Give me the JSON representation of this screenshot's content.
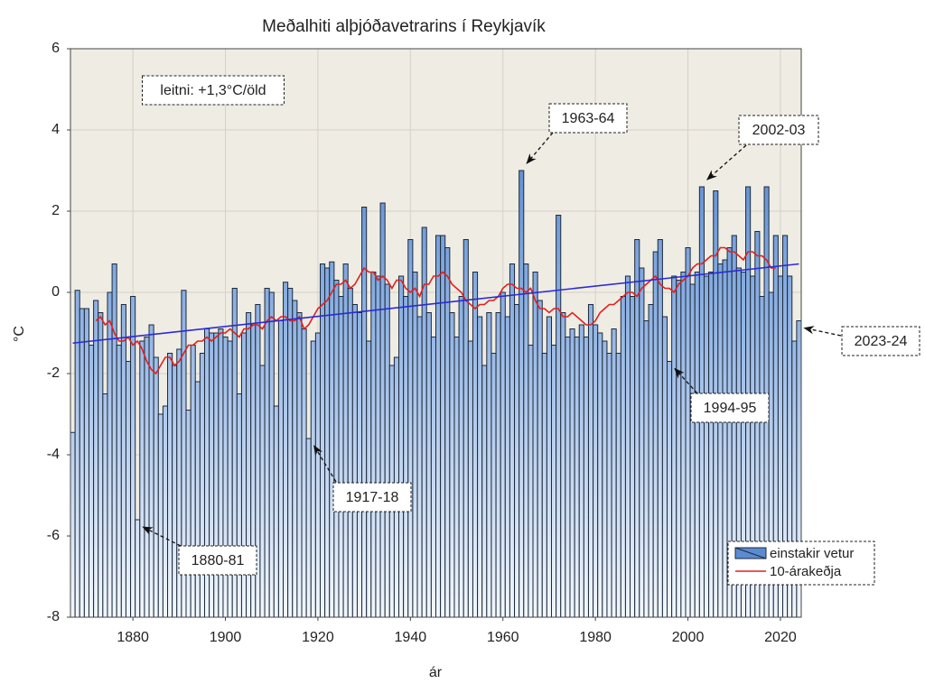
{
  "chart_data": {
    "type": "bar",
    "title": "Meðalhiti alþjóðavetrarins í Reykjavík",
    "x_label": "ár",
    "y_label": "°C",
    "x": [
      1867,
      1868,
      1869,
      1870,
      1871,
      1872,
      1873,
      1874,
      1875,
      1876,
      1877,
      1878,
      1879,
      1880,
      1881,
      1882,
      1883,
      1884,
      1885,
      1886,
      1887,
      1888,
      1889,
      1890,
      1891,
      1892,
      1893,
      1894,
      1895,
      1896,
      1897,
      1898,
      1899,
      1900,
      1901,
      1902,
      1903,
      1904,
      1905,
      1906,
      1907,
      1908,
      1909,
      1910,
      1911,
      1912,
      1913,
      1914,
      1915,
      1916,
      1917,
      1918,
      1919,
      1920,
      1921,
      1922,
      1923,
      1924,
      1925,
      1926,
      1927,
      1928,
      1929,
      1930,
      1931,
      1932,
      1933,
      1934,
      1935,
      1936,
      1937,
      1938,
      1939,
      1940,
      1941,
      1942,
      1943,
      1944,
      1945,
      1946,
      1947,
      1948,
      1949,
      1950,
      1951,
      1952,
      1953,
      1954,
      1955,
      1956,
      1957,
      1958,
      1959,
      1960,
      1961,
      1962,
      1963,
      1964,
      1965,
      1966,
      1967,
      1968,
      1969,
      1970,
      1971,
      1972,
      1973,
      1974,
      1975,
      1976,
      1977,
      1978,
      1979,
      1980,
      1981,
      1982,
      1983,
      1984,
      1985,
      1986,
      1987,
      1988,
      1989,
      1990,
      1991,
      1992,
      1993,
      1994,
      1995,
      1996,
      1997,
      1998,
      1999,
      2000,
      2001,
      2002,
      2003,
      2004,
      2005,
      2006,
      2007,
      2008,
      2009,
      2010,
      2011,
      2012,
      2013,
      2014,
      2015,
      2016,
      2017,
      2018,
      2019,
      2020,
      2021,
      2022,
      2023,
      2024
    ],
    "series": [
      {
        "name": "einstakir vetur",
        "color": "#5b8bd0",
        "type": "bar",
        "values": [
          -3.45,
          0.05,
          -0.4,
          -0.4,
          -1.3,
          -0.2,
          -0.5,
          -2.5,
          0.0,
          0.7,
          -1.3,
          -0.3,
          -1.7,
          -0.1,
          -5.6,
          -1.2,
          -1.1,
          -0.8,
          -1.6,
          -3.0,
          -2.8,
          -1.5,
          -1.8,
          -1.4,
          0.05,
          -2.9,
          -1.3,
          -2.2,
          -1.5,
          -0.9,
          -1.0,
          -1.0,
          -0.9,
          -1.1,
          -1.2,
          0.1,
          -2.5,
          -1.0,
          -0.5,
          -0.8,
          -0.3,
          -1.8,
          0.1,
          0.0,
          -2.8,
          -0.7,
          0.25,
          0.1,
          -0.2,
          -0.5,
          -0.9,
          -3.6,
          -1.2,
          -1.0,
          0.7,
          0.6,
          0.75,
          0.3,
          -0.1,
          0.7,
          0.1,
          -0.3,
          -0.5,
          2.1,
          -1.2,
          0.5,
          0.4,
          2.2,
          0.2,
          -1.8,
          -1.6,
          0.4,
          -0.1,
          1.3,
          0.5,
          -0.6,
          1.6,
          -0.5,
          -1.1,
          1.4,
          1.4,
          1.1,
          -0.5,
          -1.1,
          -0.1,
          1.3,
          -1.2,
          0.5,
          -0.6,
          -1.8,
          -0.5,
          -1.5,
          -0.5,
          0.0,
          -0.6,
          0.7,
          -0.3,
          3.0,
          0.7,
          -1.3,
          0.5,
          -0.2,
          -1.5,
          -0.6,
          -1.3,
          1.9,
          -0.5,
          -1.1,
          -0.9,
          -1.1,
          -0.8,
          -1.1,
          -0.3,
          -0.8,
          -1.0,
          -1.2,
          -1.5,
          -0.9,
          -1.5,
          -0.1,
          0.4,
          -0.1,
          1.3,
          0.6,
          -0.7,
          -0.3,
          1.0,
          1.3,
          -0.6,
          -1.7,
          0.4,
          0.3,
          0.5,
          1.1,
          0.2,
          0.5,
          2.6,
          0.4,
          0.5,
          2.5,
          0.7,
          0.8,
          1.1,
          1.4,
          0.6,
          0.5,
          2.6,
          0.4,
          1.5,
          -0.1,
          2.6,
          0.0,
          1.4,
          0.4,
          1.4,
          0.4,
          -1.2,
          -0.7
        ]
      },
      {
        "name": "10-árakeðja",
        "color": "#e02020",
        "type": "line",
        "values": [
          null,
          null,
          null,
          null,
          null,
          -0.7,
          -0.6,
          -0.8,
          -0.7,
          -1.0,
          -1.2,
          -1.2,
          -1.1,
          -1.3,
          -1.2,
          -1.4,
          -1.7,
          -1.9,
          -2.0,
          -1.8,
          -1.6,
          -1.6,
          -1.8,
          -1.7,
          -1.5,
          -1.3,
          -1.3,
          -1.2,
          -1.2,
          -1.1,
          -1.2,
          -1.1,
          -1.0,
          -1.0,
          -0.9,
          -1.0,
          -1.1,
          -0.9,
          -0.9,
          -0.8,
          -0.8,
          -0.9,
          -0.7,
          -0.6,
          -0.7,
          -0.6,
          -0.6,
          -0.7,
          -0.7,
          -0.6,
          -0.9,
          -0.8,
          -0.6,
          -0.4,
          -0.3,
          -0.2,
          0.0,
          0.2,
          0.2,
          0.3,
          0.1,
          0.2,
          0.4,
          0.6,
          0.5,
          0.5,
          0.3,
          0.4,
          0.3,
          0.1,
          0.3,
          0.3,
          0.1,
          0.0,
          0.1,
          -0.1,
          0.2,
          0.2,
          0.4,
          0.4,
          0.5,
          0.4,
          0.2,
          0.1,
          0.0,
          -0.2,
          -0.3,
          -0.4,
          -0.3,
          -0.3,
          -0.2,
          -0.2,
          -0.1,
          0.1,
          0.2,
          0.2,
          0.1,
          0.1,
          0.0,
          0.1,
          -0.2,
          -0.4,
          -0.4,
          -0.5,
          -0.4,
          -0.4,
          -0.6,
          -0.6,
          -0.5,
          -0.6,
          -0.7,
          -0.8,
          -0.8,
          -0.7,
          -0.5,
          -0.4,
          -0.3,
          -0.3,
          -0.2,
          -0.1,
          0.0,
          0.0,
          -0.1,
          0.1,
          0.2,
          0.3,
          0.4,
          0.2,
          0.1,
          0.1,
          0.0,
          0.2,
          0.3,
          0.4,
          0.6,
          0.7,
          0.7,
          0.8,
          0.9,
          0.9,
          1.1,
          1.1,
          1.0,
          1.0,
          0.9,
          0.8,
          1.0,
          1.0,
          0.9,
          0.9,
          0.8,
          0.6,
          0.6,
          null,
          null,
          null,
          null,
          null
        ]
      }
    ],
    "trend_line": {
      "x": [
        1867,
        2024
      ],
      "values": [
        -1.25,
        0.7
      ],
      "color": "#2a2ad8"
    },
    "xlim": [
      1866.5,
      2024.5
    ],
    "ylim": [
      -8,
      6
    ],
    "xticks": [
      1880,
      1900,
      1920,
      1940,
      1960,
      1980,
      2000,
      2020
    ],
    "yticks": [
      -8,
      -6,
      -4,
      -2,
      0,
      2,
      4,
      6
    ],
    "grid": true,
    "legend": "lower right",
    "annotations": [
      {
        "label": "leitni: +1,3°C/öld"
      },
      {
        "label": "1963-64",
        "x": 1964,
        "y": 3.0
      },
      {
        "label": "2002-03",
        "x": 2003,
        "y": 2.6
      },
      {
        "label": "2023-24",
        "x": 2024,
        "y": -0.7
      },
      {
        "label": "1994-95",
        "x": 1996,
        "y": -1.7
      },
      {
        "label": "1917-18",
        "x": 1918,
        "y": -3.6
      },
      {
        "label": "1880-81",
        "x": 1881,
        "y": -5.6
      }
    ]
  }
}
